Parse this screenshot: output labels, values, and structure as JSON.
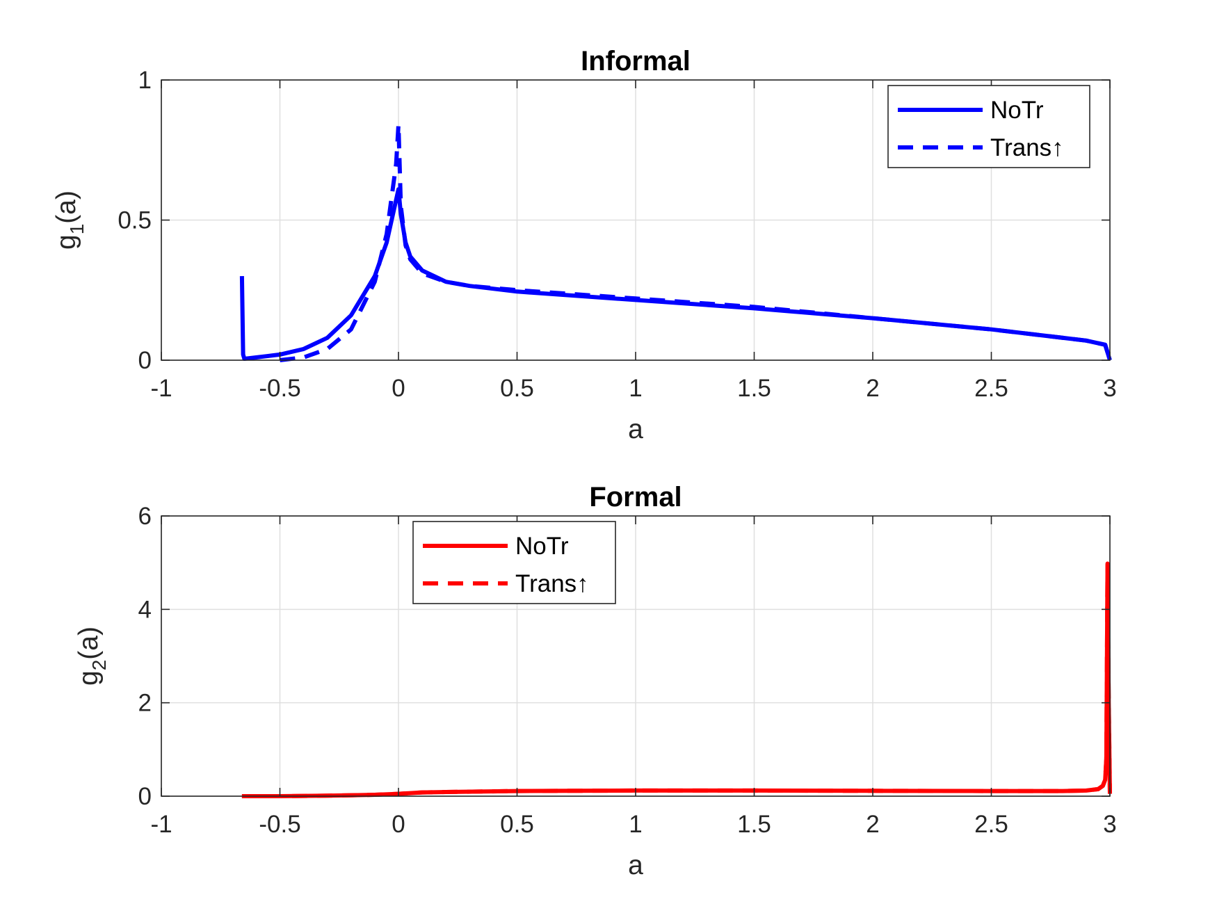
{
  "chart_data": [
    {
      "type": "line",
      "title": "Informal",
      "xlabel": "a",
      "ylabel": {
        "base": "g",
        "sub": "1",
        "rest": "(a)"
      },
      "xlim": [
        -1,
        3
      ],
      "ylim": [
        0,
        1
      ],
      "xticks": [
        "-1",
        "-0.5",
        "0",
        "0.5",
        "1",
        "1.5",
        "2",
        "2.5",
        "3"
      ],
      "yticks": [
        "0",
        "0.5",
        "1"
      ],
      "xtick_values": [
        -1,
        -0.5,
        0,
        0.5,
        1,
        1.5,
        2,
        2.5,
        3
      ],
      "ytick_values": [
        0,
        0.5,
        1
      ],
      "grid": true,
      "legend_position": "top-right",
      "color": "#0000ff",
      "series": [
        {
          "name": "NoTr",
          "style": "solid",
          "x": [
            -0.66,
            -0.655,
            -0.65,
            -0.6,
            -0.5,
            -0.4,
            -0.3,
            -0.2,
            -0.1,
            -0.05,
            0,
            0.01,
            0.03,
            0.05,
            0.1,
            0.2,
            0.3,
            0.5,
            1.0,
            1.5,
            2.0,
            2.5,
            2.9,
            2.98,
            3.0
          ],
          "y": [
            0.3,
            0.02,
            0.005,
            0.01,
            0.02,
            0.04,
            0.08,
            0.16,
            0.3,
            0.42,
            0.61,
            0.52,
            0.42,
            0.37,
            0.32,
            0.28,
            0.265,
            0.245,
            0.215,
            0.185,
            0.15,
            0.11,
            0.07,
            0.055,
            0.0
          ]
        },
        {
          "name": "Trans↑",
          "style": "dashed",
          "x": [
            -0.5,
            -0.4,
            -0.3,
            -0.2,
            -0.1,
            -0.05,
            -0.01,
            0,
            0.01,
            0.03,
            0.05,
            0.1,
            0.2,
            0.3,
            0.5,
            1.0,
            1.5,
            2.0,
            2.5,
            2.9,
            2.98,
            3.0
          ],
          "y": [
            0.0,
            0.01,
            0.04,
            0.11,
            0.28,
            0.45,
            0.7,
            0.84,
            0.55,
            0.41,
            0.36,
            0.31,
            0.28,
            0.265,
            0.25,
            0.22,
            0.19,
            0.15,
            0.11,
            0.07,
            0.055,
            0.0
          ]
        }
      ]
    },
    {
      "type": "line",
      "title": "Formal",
      "xlabel": "a",
      "ylabel": {
        "base": "g",
        "sub": "2",
        "rest": "(a)"
      },
      "xlim": [
        -1,
        3
      ],
      "ylim": [
        0,
        6
      ],
      "xticks": [
        "-1",
        "-0.5",
        "0",
        "0.5",
        "1",
        "1.5",
        "2",
        "2.5",
        "3"
      ],
      "yticks": [
        "0",
        "2",
        "4",
        "6"
      ],
      "xtick_values": [
        -1,
        -0.5,
        0,
        0.5,
        1,
        1.5,
        2,
        2.5,
        3
      ],
      "ytick_values": [
        0,
        2,
        4,
        6
      ],
      "grid": true,
      "legend_position": "top-left",
      "color": "#ff0000",
      "series": [
        {
          "name": "NoTr",
          "style": "solid",
          "x": [
            -0.66,
            -0.5,
            -0.3,
            -0.1,
            0,
            0.1,
            0.2,
            0.5,
            1.0,
            1.5,
            2.0,
            2.5,
            2.8,
            2.9,
            2.95,
            2.97,
            2.98,
            2.985,
            2.99,
            2.995,
            3.0
          ],
          "y": [
            0.0,
            0.0,
            0.01,
            0.03,
            0.05,
            0.08,
            0.09,
            0.11,
            0.12,
            0.12,
            0.115,
            0.11,
            0.11,
            0.12,
            0.15,
            0.22,
            0.35,
            0.8,
            4.98,
            2.0,
            0.05
          ]
        },
        {
          "name": "Trans↑",
          "style": "dashed",
          "x": [
            -0.66,
            -0.5,
            -0.3,
            -0.1,
            0,
            0.1,
            0.2,
            0.5,
            1.0,
            1.5,
            2.0,
            2.5,
            2.8,
            2.9,
            2.95,
            2.97,
            2.98,
            2.985,
            2.99,
            2.995,
            3.0
          ],
          "y": [
            0.0,
            0.0,
            0.01,
            0.03,
            0.05,
            0.08,
            0.09,
            0.11,
            0.12,
            0.12,
            0.115,
            0.11,
            0.11,
            0.12,
            0.15,
            0.22,
            0.35,
            0.8,
            4.95,
            2.0,
            0.05
          ]
        }
      ]
    }
  ]
}
